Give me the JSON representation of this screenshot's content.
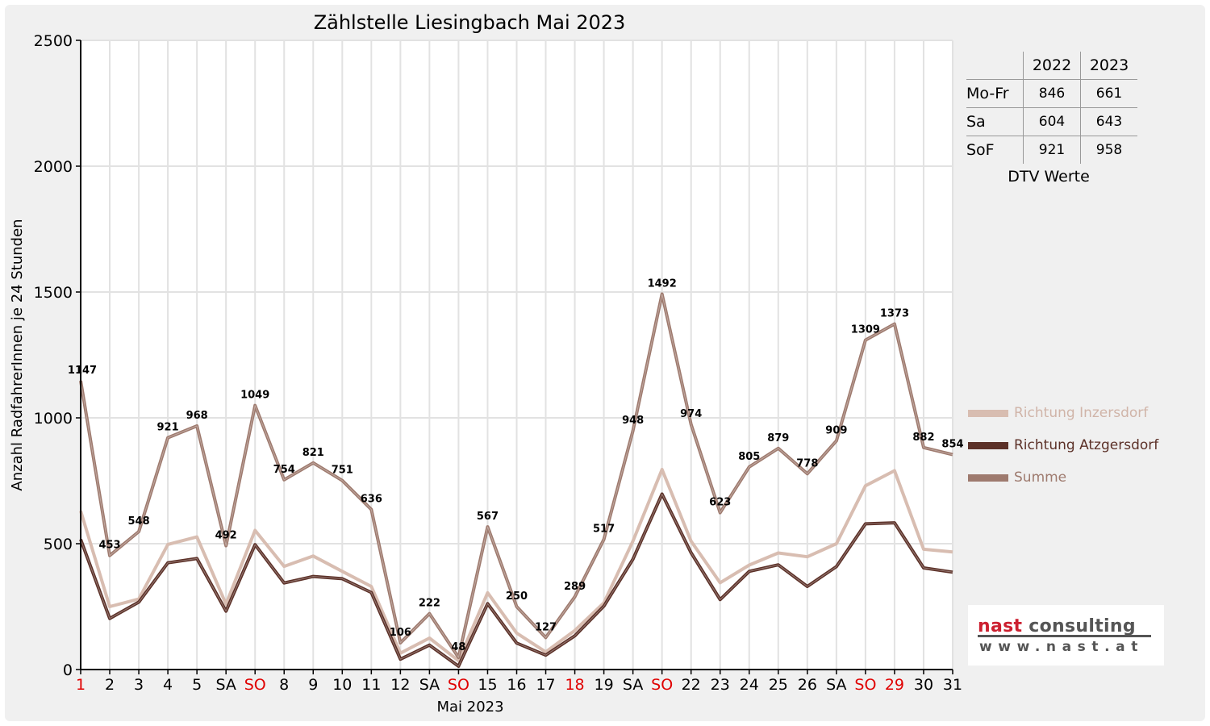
{
  "chart_data": {
    "type": "line",
    "title": "Zählstelle Liesingbach Mai 2023",
    "xlabel": "Mai 2023",
    "ylabel": "Anzahl RadfahrerInnen je 24 Stunden",
    "ylim": [
      0,
      2500
    ],
    "yticks": [
      "0",
      "500",
      "1000",
      "1500",
      "2000",
      "2500"
    ],
    "grid": true,
    "legend_position": "right",
    "categories": [
      "1",
      "2",
      "3",
      "4",
      "5",
      "SA",
      "SO",
      "8",
      "9",
      "10",
      "11",
      "12",
      "SA",
      "SO",
      "15",
      "16",
      "17",
      "18",
      "19",
      "SA",
      "SO",
      "22",
      "23",
      "24",
      "25",
      "26",
      "SA",
      "SO",
      "29",
      "30",
      "31"
    ],
    "highlighted_categories": [
      0,
      6,
      13,
      17,
      20,
      27,
      28
    ],
    "series": [
      {
        "name": "Richtung Inzersdorf",
        "color": "#d8bdb1",
        "values": [
          630,
          250,
          280,
          497,
          527,
          260,
          553,
          410,
          451,
          390,
          330,
          65,
          125,
          35,
          305,
          145,
          70,
          155,
          265,
          510,
          795,
          510,
          345,
          415,
          463,
          448,
          500,
          730,
          790,
          478,
          467
        ]
      },
      {
        "name": "Richtung Atzgersdorf",
        "color": "#5c3128",
        "values": [
          517,
          203,
          268,
          424,
          441,
          232,
          496,
          344,
          370,
          361,
          306,
          41,
          97,
          13,
          262,
          105,
          57,
          134,
          252,
          438,
          697,
          464,
          278,
          390,
          416,
          330,
          409,
          579,
          583,
          404,
          387
        ]
      },
      {
        "name": "Summe",
        "color": "#9e7a6e",
        "values": [
          1147,
          453,
          548,
          921,
          968,
          492,
          1049,
          754,
          821,
          751,
          636,
          106,
          222,
          48,
          567,
          250,
          127,
          289,
          517,
          948,
          1492,
          974,
          623,
          805,
          879,
          778,
          909,
          1309,
          1373,
          882,
          854
        ]
      }
    ],
    "data_labels": [
      "1147",
      "453",
      "548",
      "921",
      "968",
      "492",
      "1049",
      "754",
      "821",
      "751",
      "636",
      "106",
      "222",
      "48",
      "567",
      "250",
      "127",
      "289",
      "517",
      "948",
      "1492",
      "974",
      "623",
      "805",
      "879",
      "778",
      "909",
      "1309",
      "1373",
      "882",
      "854"
    ],
    "colors": {
      "weekend": "#e00000",
      "axis": "#000000",
      "grid": "#e2e2e2"
    }
  },
  "dtv": {
    "headers": [
      "2022",
      "2023"
    ],
    "rows": [
      {
        "label": "Mo-Fr",
        "v2022": "846",
        "v2023": "661"
      },
      {
        "label": "Sa",
        "v2022": "604",
        "v2023": "643"
      },
      {
        "label": "SoF",
        "v2022": "921",
        "v2023": "958"
      }
    ],
    "caption": "DTV Werte"
  },
  "logo": {
    "word1": "nast",
    "word2": "consulting",
    "url": "www.nast.at"
  }
}
